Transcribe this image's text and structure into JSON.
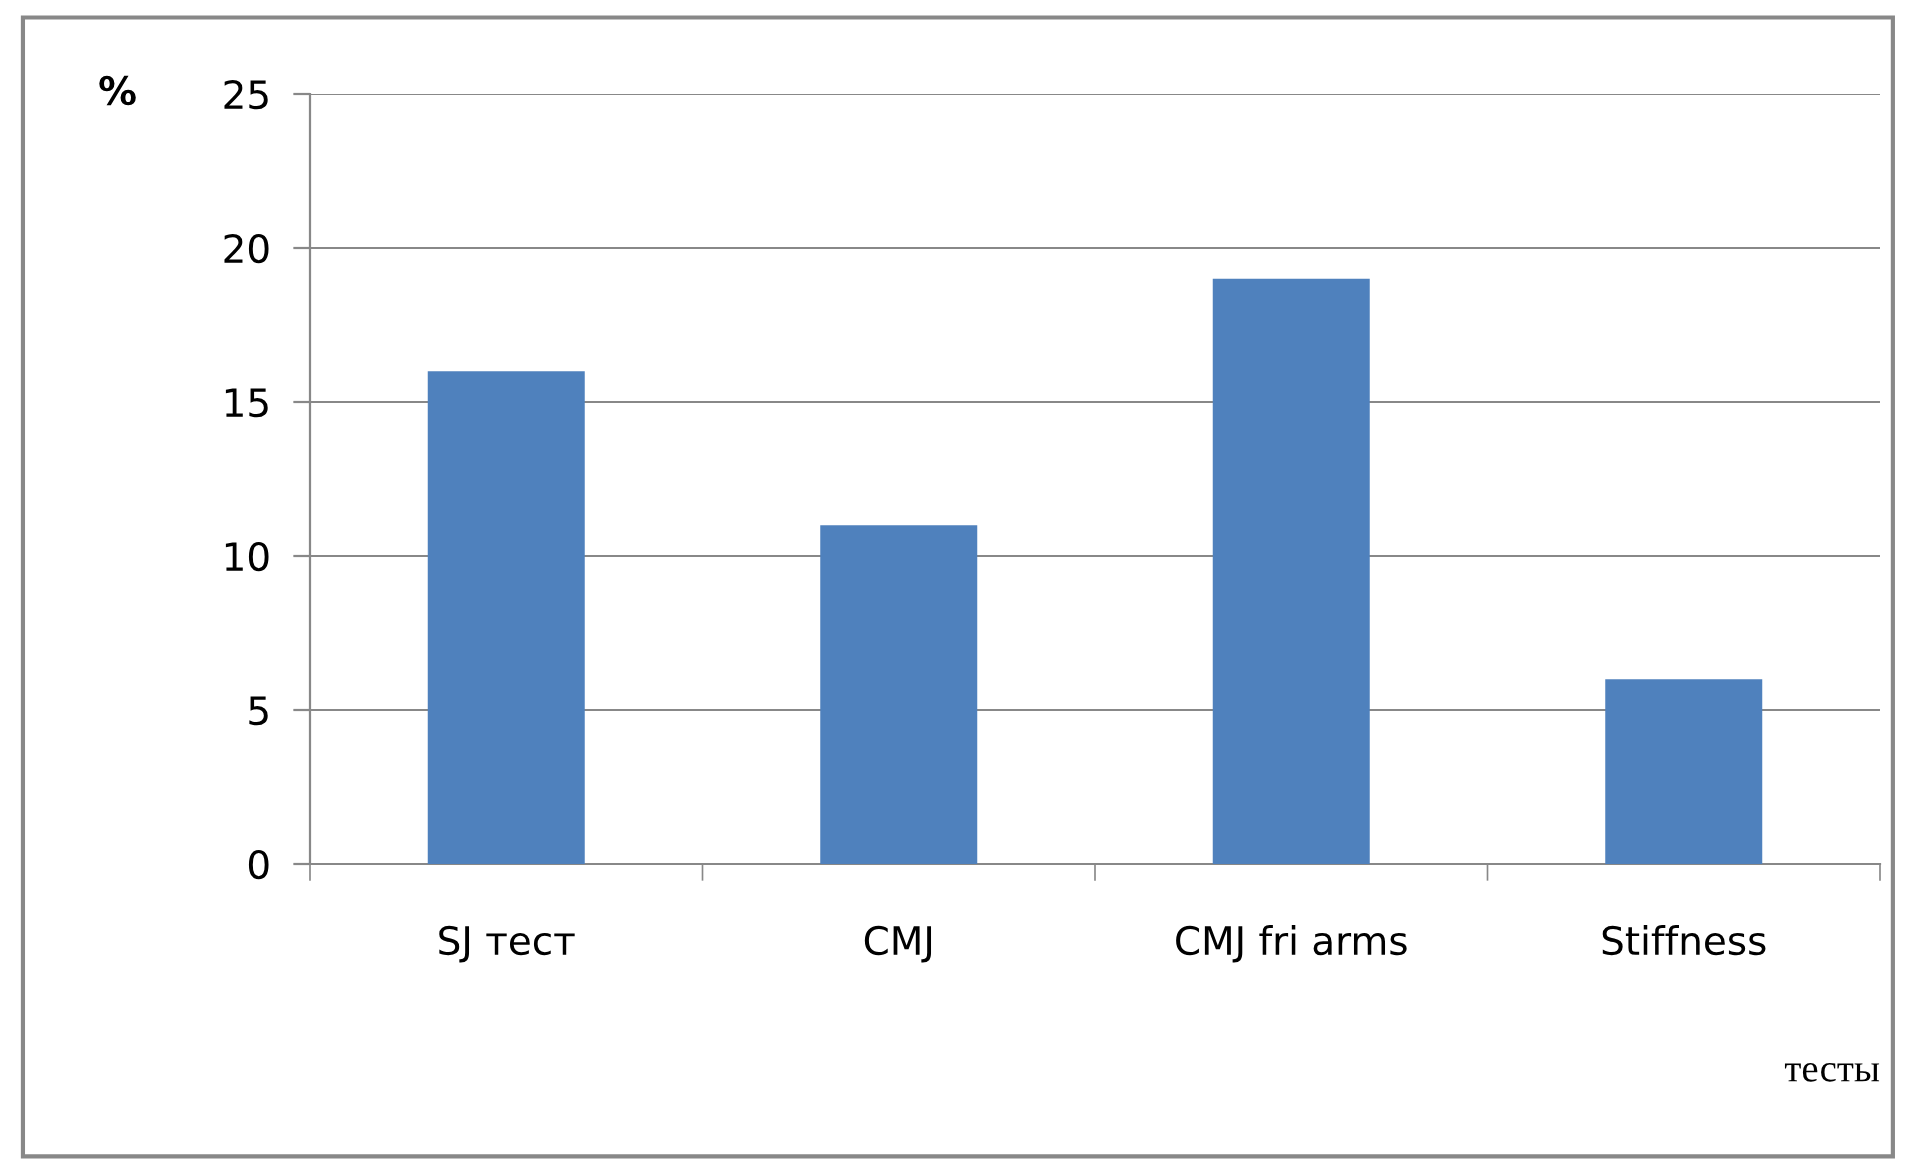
{
  "chart_data": {
    "type": "bar",
    "ylabel": "%",
    "xlabel": "тесты",
    "categories": [
      "SJ тест",
      "CMJ",
      "CMJ fri arms",
      "Stiffness"
    ],
    "values": [
      16,
      11,
      19,
      6
    ],
    "color": "#4f81bd",
    "ylim": [
      0,
      25
    ],
    "yticks": [
      0,
      5,
      10,
      15,
      20,
      25
    ],
    "grid": "y"
  }
}
